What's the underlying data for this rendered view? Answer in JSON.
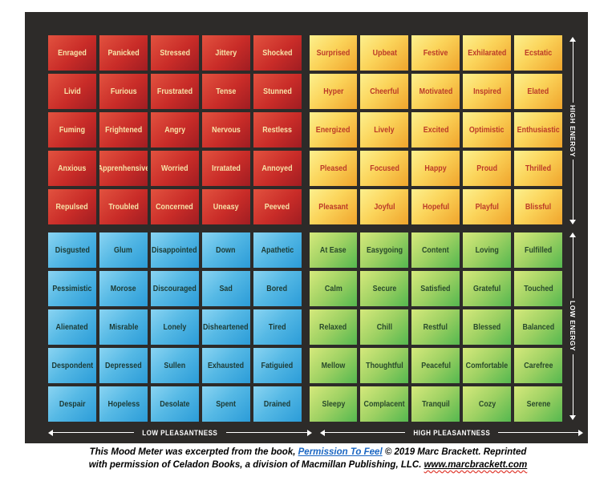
{
  "meter": {
    "quadrants": [
      {
        "id": "red",
        "position": "top-left",
        "meaning": "high-energy-low-pleasantness",
        "bg_gradient": [
          "#e2523f",
          "#a01d22"
        ],
        "text_color": "#f7e4a9",
        "cells": [
          "Enraged",
          "Panicked",
          "Stressed",
          "Jittery",
          "Shocked",
          "Livid",
          "Furious",
          "Frustrated",
          "Tense",
          "Stunned",
          "Fuming",
          "Frightened",
          "Angry",
          "Nervous",
          "Restless",
          "Anxious",
          "Apprenhensive",
          "Worried",
          "Irratated",
          "Annoyed",
          "Repulsed",
          "Troubled",
          "Concerned",
          "Uneasy",
          "Peeved"
        ]
      },
      {
        "id": "yellow",
        "position": "top-right",
        "meaning": "high-energy-high-pleasantness",
        "bg_gradient": [
          "#fdf08e",
          "#f0a42c"
        ],
        "text_color": "#bc3a28",
        "cells": [
          "Surprised",
          "Upbeat",
          "Festive",
          "Exhilarated",
          "Ecstatic",
          "Hyper",
          "Cheerful",
          "Motivated",
          "Inspired",
          "Elated",
          "Energized",
          "Lively",
          "Excited",
          "Optimistic",
          "Enthusiastic",
          "Pleased",
          "Focused",
          "Happy",
          "Proud",
          "Thrilled",
          "Pleasant",
          "Joyful",
          "Hopeful",
          "Playful",
          "Blissful"
        ]
      },
      {
        "id": "blue",
        "position": "bottom-left",
        "meaning": "low-energy-low-pleasantness",
        "bg_gradient": [
          "#8ad4f2",
          "#2b9cd8"
        ],
        "text_color": "#1d3a34",
        "cells": [
          "Disgusted",
          "Glum",
          "Disappointed",
          "Down",
          "Apathetic",
          "Pessimistic",
          "Morose",
          "Discouraged",
          "Sad",
          "Bored",
          "Alienated",
          "Misrable",
          "Lonely",
          "Disheartened",
          "Tired",
          "Despondent",
          "Depressed",
          "Sullen",
          "Exhausted",
          "Fatiguied",
          "Despair",
          "Hopeless",
          "Desolate",
          "Spent",
          "Drained"
        ]
      },
      {
        "id": "green",
        "position": "bottom-right",
        "meaning": "low-energy-high-pleasantness",
        "bg_gradient": [
          "#d5e97c",
          "#55b84f"
        ],
        "text_color": "#28492b",
        "cells": [
          "At Ease",
          "Easygoing",
          "Content",
          "Loving",
          "Fulfilled",
          "Calm",
          "Secure",
          "Satisfied",
          "Grateful",
          "Touched",
          "Relaxed",
          "Chill",
          "Restful",
          "Blessed",
          "Balanced",
          "Mellow",
          "Thoughtful",
          "Peaceful",
          "Comfortable",
          "Carefree",
          "Sleepy",
          "Complacent",
          "Tranquil",
          "Cozy",
          "Serene"
        ]
      }
    ],
    "axes": {
      "high_energy": "HIGH ENERGY",
      "low_energy": "LOW ENERGY",
      "low_pleasantness": "LOW PLEASANTNESS",
      "high_pleasantness": "HIGH PLEASANTNESS"
    },
    "icons": {
      "vertical_axis": [
        "arrow-up-icon",
        "arrow-down-icon"
      ],
      "horizontal_axis": [
        "arrow-left-icon",
        "arrow-right-icon"
      ]
    },
    "colors": {
      "frame": "#2d2b29",
      "page_background": "#ffffff",
      "axis_text": "#ffffff",
      "link_blue": "#1a66c2",
      "squiggle_red": "#e03c31"
    }
  },
  "caption": {
    "line1_pre": "This Mood Meter was excerpted from the book, ",
    "link1": "Permission To Feel",
    "line1_post": " © 2019 Marc Brackett. Reprinted",
    "line2_pre": "with permission of Celadon Books, a division of Macmillan Publishing, LLC. ",
    "link2": "www.marcbrackett.com"
  }
}
